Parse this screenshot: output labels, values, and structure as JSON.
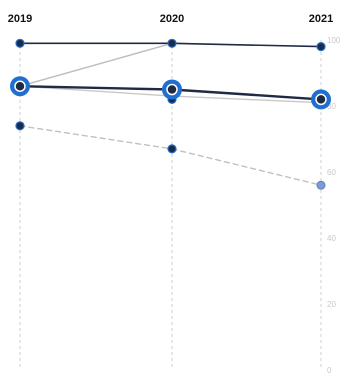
{
  "chart_data": {
    "type": "line",
    "title": "",
    "xlabel": "",
    "ylabel": "",
    "years": [
      "2019",
      "2020",
      "2021"
    ],
    "ylim": [
      0,
      100
    ],
    "y_tick_labels": [
      "100",
      "80",
      "60",
      "40",
      "20",
      "0"
    ],
    "grid": false,
    "legend": "none",
    "series": [
      {
        "values": [
          99,
          99,
          98
        ],
        "color": "#1f2a44",
        "style": "solid",
        "emphasis": false
      },
      {
        "values": [
          86,
          85,
          82
        ],
        "color": "#1f2a44",
        "style": "solid",
        "emphasis": true
      },
      {
        "values": [
          86,
          99,
          null
        ],
        "color": "#bdbdbd",
        "style": "solid",
        "emphasis": false
      },
      {
        "values": [
          86,
          83,
          81
        ],
        "color": "#c8c8c8",
        "style": "solid",
        "emphasis": false
      },
      {
        "values": [
          null,
          82,
          null
        ],
        "color": "#1f2a44",
        "style": "solid",
        "emphasis": false
      },
      {
        "values": [
          74,
          67,
          56
        ],
        "color": "#c0c0c0",
        "style": "dashed",
        "emphasis": false
      }
    ],
    "colors": {
      "axis": "#cfcfcf",
      "highlight": "#1f6fd1",
      "dark": "#1f2a44",
      "faded_point": "#7f9bd6"
    }
  }
}
